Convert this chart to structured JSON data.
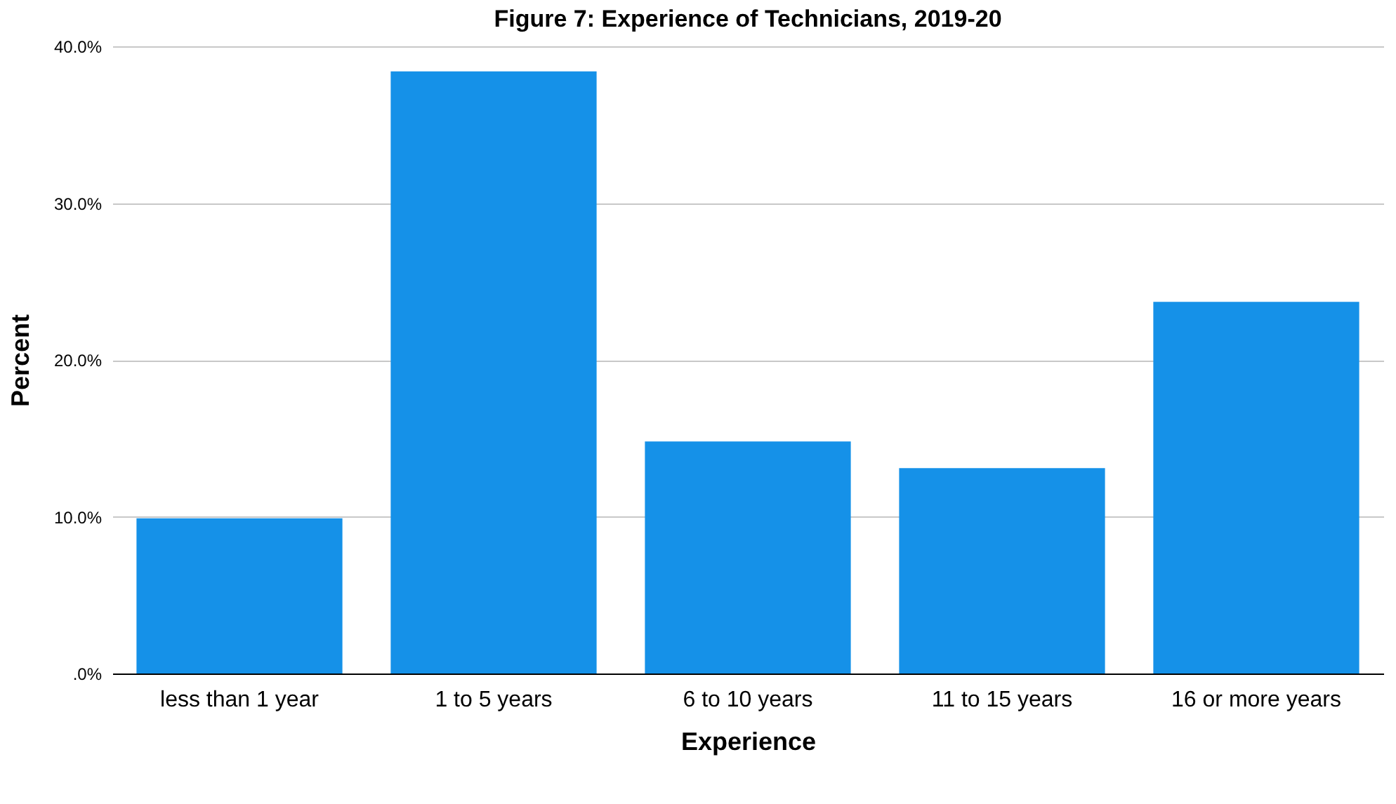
{
  "chart_data": {
    "type": "bar",
    "title": "Figure 7: Experience of Technicians, 2019-20",
    "xlabel": "Experience",
    "ylabel": "Percent",
    "categories": [
      "less than 1 year",
      "1 to 5 years",
      "6 to 10 years",
      "11 to 15 years",
      "16 or more years"
    ],
    "values": [
      9.9,
      38.4,
      14.8,
      13.1,
      23.7
    ],
    "color": "#1591e8",
    "ylim": [
      0,
      40
    ],
    "yticks": [
      {
        "value": 0,
        "label": ".0%"
      },
      {
        "value": 10,
        "label": "10.0%"
      },
      {
        "value": 20,
        "label": "20.0%"
      },
      {
        "value": 30,
        "label": "30.0%"
      },
      {
        "value": 40,
        "label": "40.0%"
      }
    ],
    "grid": "y"
  }
}
